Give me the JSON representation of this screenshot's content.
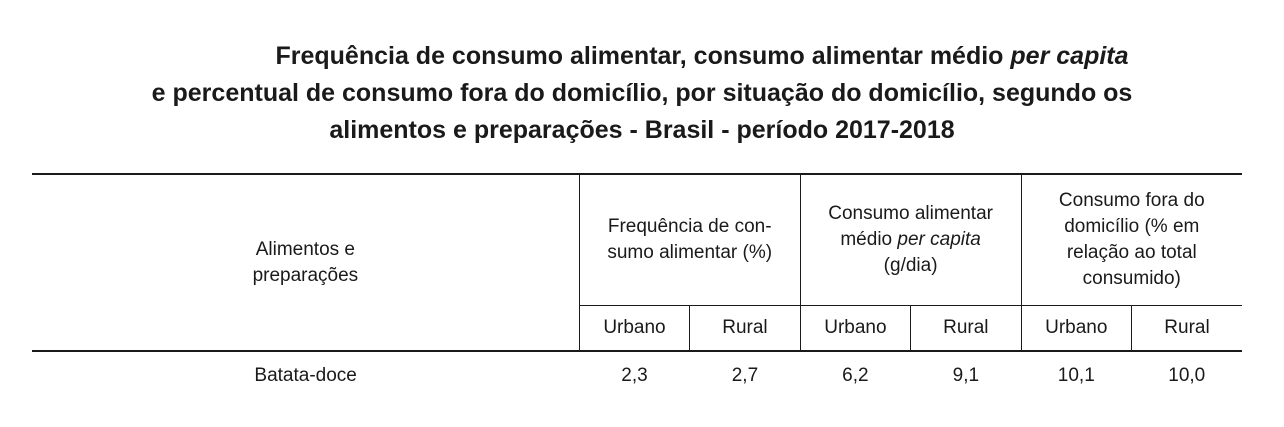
{
  "title": {
    "line1_prefix": "Frequência de consumo alimentar, consumo alimentar médio ",
    "line1_italic": "per capita",
    "line2": "e percentual de consumo fora do domicílio, por situação do domicílio, segundo os",
    "line3": "alimentos e preparações - Brasil - período 2017-2018"
  },
  "table": {
    "label_header_line1": "Alimentos e",
    "label_header_line2": "preparações",
    "groups": [
      {
        "line1": "Frequência de con-",
        "line2": "sumo alimentar (%)"
      },
      {
        "line1": "Consumo alimentar",
        "line2_prefix": "médio ",
        "line2_italic": "per capita",
        "line3": "(g/dia)"
      },
      {
        "line1": "Consumo fora do",
        "line2": "domicílio (% em",
        "line3": "relação ao total",
        "line4": "consumido)"
      }
    ],
    "subheaders": [
      "Urbano",
      "Rural",
      "Urbano",
      "Rural",
      "Urbano",
      "Rural"
    ],
    "rows": [
      {
        "label": "Batata-doce",
        "values": [
          "2,3",
          "2,7",
          "6,2",
          "9,1",
          "10,1",
          "10,0"
        ]
      }
    ]
  }
}
